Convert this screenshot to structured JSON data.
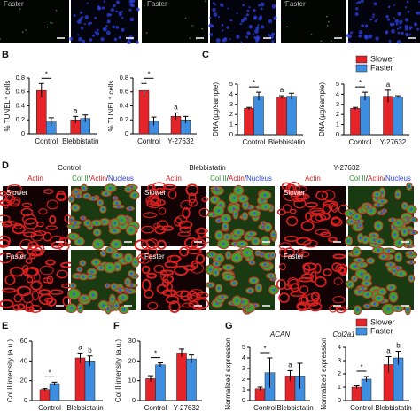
{
  "panel_labels": [
    "B",
    "C",
    "D",
    "E",
    "F",
    "G"
  ],
  "top_labels": [
    "Faster",
    "Faster",
    "Faster"
  ],
  "microscopy": {
    "columns": [
      "Control",
      "Blebbistatin",
      "Y-27632"
    ],
    "channel_single": "Actin",
    "channel_merge": [
      "Col II",
      "/",
      "Actin",
      "/",
      "Nucleus"
    ],
    "rows": [
      "Slower",
      "Faster"
    ]
  },
  "chart_data": [
    {
      "type": "bar",
      "ylabel": "% TUNEL⁺ cells",
      "categories": [
        "Control",
        "Blebbistatin"
      ],
      "ylim": [
        0,
        0.8
      ],
      "yticks": [
        0,
        0.2,
        0.4,
        0.6,
        0.8
      ],
      "annotations": [
        "*",
        "a"
      ],
      "series": [
        {
          "name": "Slower",
          "color": "#e5242a",
          "values": [
            0.62,
            0.2
          ],
          "errors": [
            0.1,
            0.05
          ]
        },
        {
          "name": "Faster",
          "color": "#3d8de0",
          "values": [
            0.17,
            0.22
          ],
          "errors": [
            0.06,
            0.05
          ]
        }
      ]
    },
    {
      "type": "bar",
      "ylabel": "% TUNEL⁺ cells",
      "categories": [
        "Control",
        "Y-27632"
      ],
      "ylim": [
        0,
        0.8
      ],
      "yticks": [
        0,
        0.2,
        0.4,
        0.6,
        0.8
      ],
      "annotations": [
        "*",
        "a"
      ],
      "series": [
        {
          "name": "Slower",
          "color": "#e5242a",
          "values": [
            0.62,
            0.25
          ],
          "errors": [
            0.1,
            0.05
          ]
        },
        {
          "name": "Faster",
          "color": "#3d8de0",
          "values": [
            0.18,
            0.2
          ],
          "errors": [
            0.06,
            0.05
          ]
        }
      ]
    },
    {
      "type": "bar",
      "ylabel": "DNA (µg/sample)",
      "categories": [
        "Control",
        "Blebbistatin"
      ],
      "ylim": [
        0,
        5
      ],
      "yticks": [
        0,
        1,
        2,
        3,
        4,
        5
      ],
      "annotations": [
        "*",
        "a"
      ],
      "series": [
        {
          "name": "Slower",
          "color": "#e5242a",
          "values": [
            2.6,
            3.7
          ],
          "errors": [
            0.1,
            0.15
          ]
        },
        {
          "name": "Faster",
          "color": "#3d8de0",
          "values": [
            3.8,
            3.8
          ],
          "errors": [
            0.4,
            0.3
          ]
        }
      ]
    },
    {
      "type": "bar",
      "ylabel": "DNA (µg/sample)",
      "categories": [
        "Control",
        "Y-27632"
      ],
      "ylim": [
        0,
        5
      ],
      "yticks": [
        0,
        1,
        2,
        3,
        4,
        5
      ],
      "annotations": [
        "*",
        "a"
      ],
      "legend": "upper right",
      "series": [
        {
          "name": "Slower",
          "color": "#e5242a",
          "values": [
            2.6,
            3.8
          ],
          "errors": [
            0.1,
            0.6
          ]
        },
        {
          "name": "Faster",
          "color": "#3d8de0",
          "values": [
            3.8,
            3.75
          ],
          "errors": [
            0.4,
            0.1
          ]
        }
      ]
    },
    {
      "type": "bar",
      "ylabel": "Col II intensity (a.u.)",
      "categories": [
        "Control",
        "Blebbistatin"
      ],
      "ylim": [
        0,
        60
      ],
      "yticks": [
        0,
        20,
        40,
        60
      ],
      "annotations": [
        "*",
        "a",
        "b"
      ],
      "series": [
        {
          "name": "Slower",
          "color": "#e5242a",
          "values": [
            11,
            43
          ],
          "errors": [
            1,
            5
          ]
        },
        {
          "name": "Faster",
          "color": "#3d8de0",
          "values": [
            17,
            40
          ],
          "errors": [
            1.5,
            5
          ]
        }
      ]
    },
    {
      "type": "bar",
      "ylabel": "Col II intensity (a.u.)",
      "categories": [
        "Control",
        "Y-27632"
      ],
      "ylim": [
        0,
        30
      ],
      "yticks": [
        0,
        10,
        20,
        30
      ],
      "annotations": [
        "*"
      ],
      "series": [
        {
          "name": "Slower",
          "color": "#e5242a",
          "values": [
            11,
            24
          ],
          "errors": [
            1.5,
            2
          ]
        },
        {
          "name": "Faster",
          "color": "#3d8de0",
          "values": [
            18,
            21
          ],
          "errors": [
            1,
            2
          ]
        }
      ]
    },
    {
      "type": "bar",
      "title": "ACAN",
      "ylabel": "Normalized expression",
      "categories": [
        "Control",
        "Blebbistatin"
      ],
      "ylim": [
        0,
        5
      ],
      "yticks": [
        0,
        1,
        2,
        3,
        4,
        5
      ],
      "annotations": [
        "*",
        "a"
      ],
      "series": [
        {
          "name": "Slower",
          "color": "#e5242a",
          "values": [
            1.1,
            2.3
          ],
          "errors": [
            0.15,
            0.5
          ]
        },
        {
          "name": "Faster",
          "color": "#3d8de0",
          "values": [
            2.6,
            2.3
          ],
          "errors": [
            1.4,
            1.2
          ]
        }
      ]
    },
    {
      "type": "bar",
      "title": "Col2a1",
      "ylabel": "Normalized expression",
      "categories": [
        "Control",
        "Blebbistatin"
      ],
      "ylim": [
        0,
        4
      ],
      "yticks": [
        0,
        1,
        2,
        3,
        4
      ],
      "annotations": [
        "*",
        "a",
        "b"
      ],
      "legend": "upper right",
      "series": [
        {
          "name": "Slower",
          "color": "#e5242a",
          "values": [
            1.0,
            2.7
          ],
          "errors": [
            0.1,
            0.6
          ]
        },
        {
          "name": "Faster",
          "color": "#3d8de0",
          "values": [
            1.6,
            3.2
          ],
          "errors": [
            0.2,
            0.5
          ]
        }
      ]
    }
  ]
}
